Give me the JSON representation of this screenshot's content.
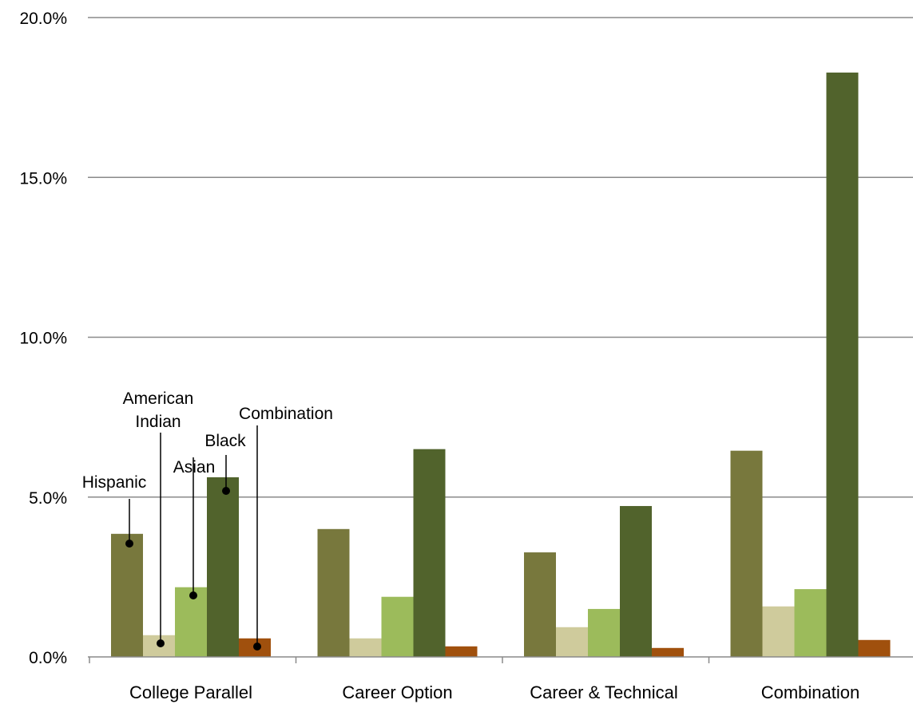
{
  "chart_data": {
    "type": "bar",
    "categories": [
      "College Parallel",
      "Career Option",
      "Career & Technical",
      "Combination"
    ],
    "series": [
      {
        "name": "Hispanic",
        "color": "#78783D",
        "values": [
          3.85,
          4.0,
          3.27,
          6.45
        ]
      },
      {
        "name": "American Indian",
        "color": "#CFCB9C",
        "values": [
          0.68,
          0.58,
          0.93,
          1.58
        ]
      },
      {
        "name": "Asian",
        "color": "#9CBB5B",
        "values": [
          2.18,
          1.88,
          1.5,
          2.12
        ]
      },
      {
        "name": "Black",
        "color": "#51632C",
        "values": [
          5.62,
          6.5,
          4.72,
          18.28
        ]
      },
      {
        "name": "Combination",
        "color": "#A0500D",
        "values": [
          0.58,
          0.33,
          0.28,
          0.53
        ]
      }
    ],
    "yticks": [
      "0.0%",
      "5.0%",
      "10.0%",
      "15.0%",
      "20.0%"
    ],
    "ylim": [
      0,
      20
    ],
    "grid": true,
    "legend": "callout labels on first category group",
    "callout_labels": [
      {
        "series": "Hispanic",
        "lines": [
          "Hispanic"
        ]
      },
      {
        "series": "American Indian",
        "lines": [
          "American",
          "Indian"
        ]
      },
      {
        "series": "Asian",
        "lines": [
          "Asian"
        ]
      },
      {
        "series": "Black",
        "lines": [
          "Black"
        ]
      },
      {
        "series": "Combination",
        "lines": [
          "Combination"
        ]
      }
    ]
  }
}
